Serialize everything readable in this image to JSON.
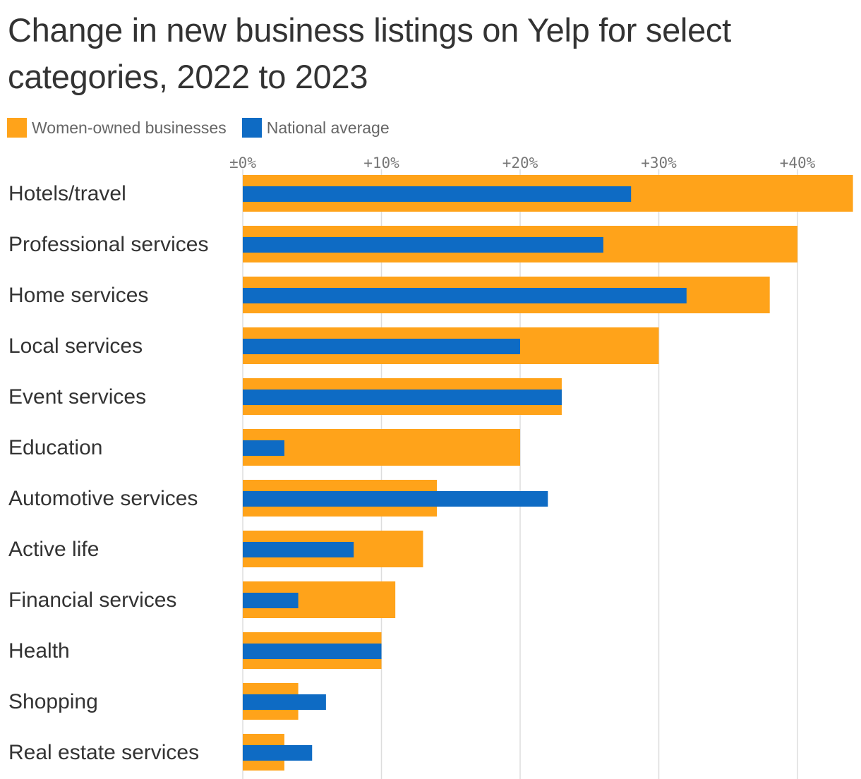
{
  "chart_data": {
    "type": "bar",
    "orientation": "horizontal",
    "title": "Change in new business listings on Yelp for select categories, 2022 to 2023",
    "categories": [
      "Hotels/travel",
      "Professional services",
      "Home services",
      "Local services",
      "Event services",
      "Education",
      "Automotive services",
      "Active life",
      "Financial services",
      "Health",
      "Shopping",
      "Real estate services"
    ],
    "series": [
      {
        "name": "Women-owned businesses",
        "color": "#FFA31A",
        "values": [
          44,
          40,
          38,
          30,
          23,
          20,
          14,
          13,
          11,
          10,
          4,
          3
        ]
      },
      {
        "name": "National average",
        "color": "#0E6BC4",
        "values": [
          28,
          26,
          32,
          20,
          23,
          3,
          22,
          8,
          4,
          10,
          6,
          5
        ]
      }
    ],
    "xlim": [
      0,
      44
    ],
    "x_ticks": [
      0,
      10,
      20,
      30,
      40
    ],
    "x_tick_labels": [
      "±0%",
      "+10%",
      "+20%",
      "+30%",
      "+40%"
    ],
    "grid": true,
    "legend_position": "top-left",
    "xlabel": "",
    "ylabel": ""
  }
}
